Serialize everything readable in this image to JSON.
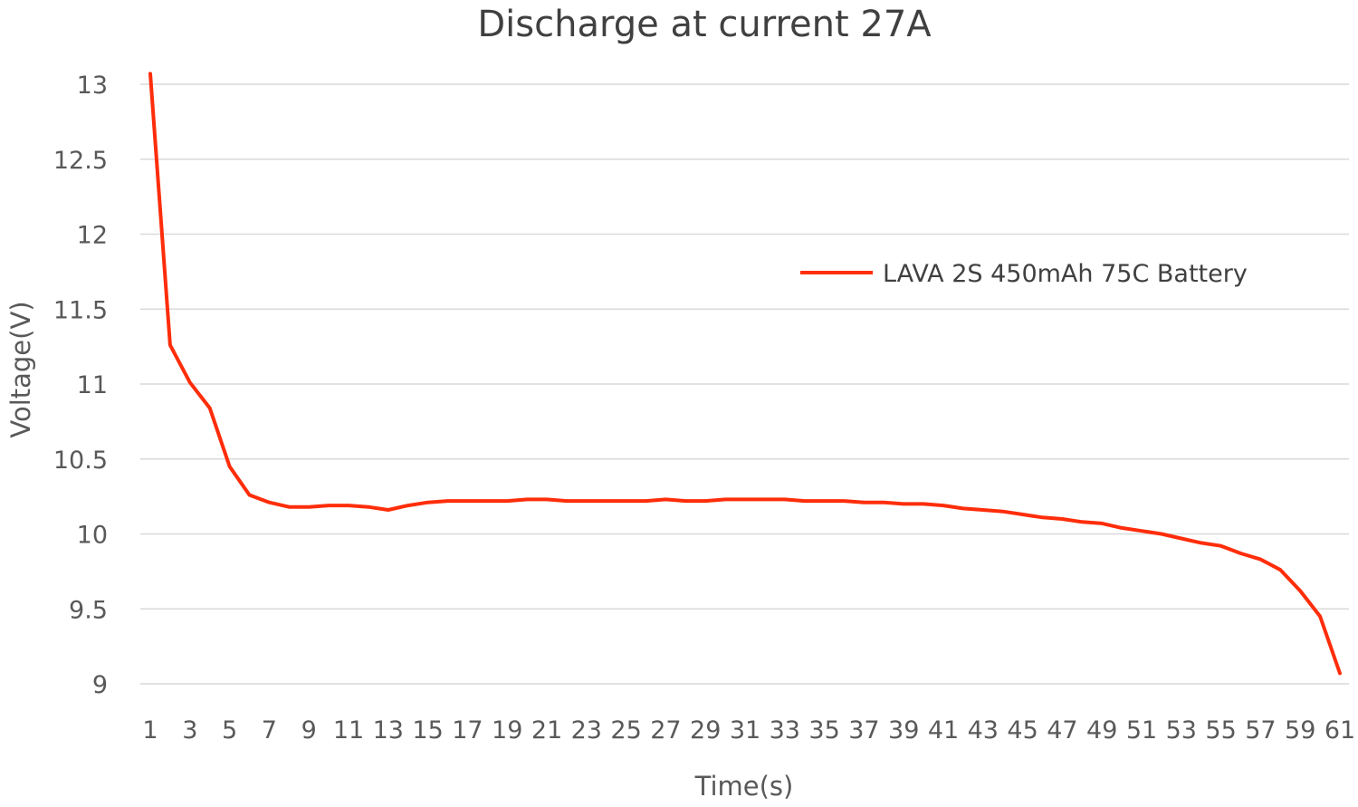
{
  "chart_data": {
    "type": "line",
    "title": "Discharge at current 27A",
    "xlabel": "Time(s)",
    "ylabel": "Voltage(V)",
    "x": [
      1,
      2,
      3,
      4,
      5,
      6,
      7,
      8,
      9,
      10,
      11,
      12,
      13,
      14,
      15,
      16,
      17,
      18,
      19,
      20,
      21,
      22,
      23,
      24,
      25,
      26,
      27,
      28,
      29,
      30,
      31,
      32,
      33,
      34,
      35,
      36,
      37,
      38,
      39,
      40,
      41,
      42,
      43,
      44,
      45,
      46,
      47,
      48,
      49,
      50,
      51,
      52,
      53,
      54,
      55,
      56,
      57,
      58,
      59,
      60,
      61
    ],
    "x_tick_labels": [
      "1",
      "3",
      "5",
      "7",
      "9",
      "11",
      "13",
      "15",
      "17",
      "19",
      "21",
      "23",
      "25",
      "27",
      "29",
      "31",
      "33",
      "35",
      "37",
      "39",
      "41",
      "43",
      "45",
      "47",
      "49",
      "51",
      "53",
      "55",
      "57",
      "59",
      "61"
    ],
    "y_tick_labels": [
      "9",
      "9.5",
      "10",
      "10.5",
      "11",
      "11.5",
      "12",
      "12.5",
      "13"
    ],
    "ylim": [
      9,
      13
    ],
    "yticks": [
      9,
      9.5,
      10,
      10.5,
      11,
      11.5,
      12,
      12.5,
      13
    ],
    "grid": true,
    "legend_position": "right",
    "series": [
      {
        "name": "LAVA 2S 450mAh 75C Battery",
        "color": "#ff2d0a",
        "values": [
          13.07,
          11.26,
          11.01,
          10.84,
          10.45,
          10.26,
          10.21,
          10.18,
          10.18,
          10.19,
          10.19,
          10.18,
          10.16,
          10.19,
          10.21,
          10.22,
          10.22,
          10.22,
          10.22,
          10.23,
          10.23,
          10.22,
          10.22,
          10.22,
          10.22,
          10.22,
          10.23,
          10.22,
          10.22,
          10.23,
          10.23,
          10.23,
          10.23,
          10.22,
          10.22,
          10.22,
          10.21,
          10.21,
          10.2,
          10.2,
          10.19,
          10.17,
          10.16,
          10.15,
          10.13,
          10.11,
          10.1,
          10.08,
          10.07,
          10.04,
          10.02,
          10.0,
          9.97,
          9.94,
          9.92,
          9.87,
          9.83,
          9.76,
          9.62,
          9.45,
          9.07
        ]
      }
    ]
  }
}
